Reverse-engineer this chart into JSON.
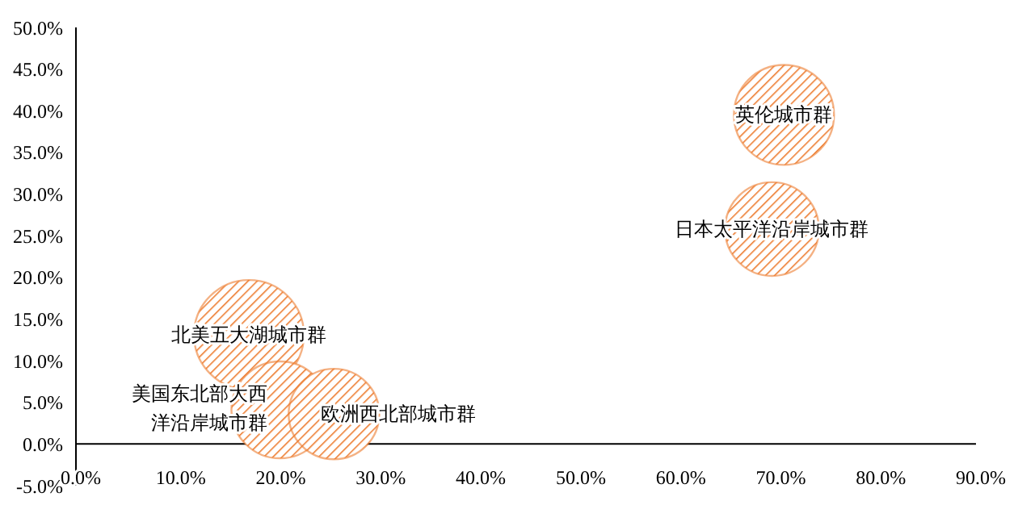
{
  "chart_data": {
    "type": "bubble",
    "xlim": [
      0,
      90
    ],
    "ylim": [
      -5,
      50
    ],
    "xticks": [
      {
        "value": 0,
        "label": "0.0%"
      },
      {
        "value": 10,
        "label": "10.0%"
      },
      {
        "value": 20,
        "label": "20.0%"
      },
      {
        "value": 30,
        "label": "30.0%"
      },
      {
        "value": 40,
        "label": "40.0%"
      },
      {
        "value": 50,
        "label": "50.0%"
      },
      {
        "value": 60,
        "label": "60.0%"
      },
      {
        "value": 70,
        "label": "70.0%"
      },
      {
        "value": 80,
        "label": "80.0%"
      },
      {
        "value": 90,
        "label": "90.0%"
      }
    ],
    "yticks": [
      {
        "value": -5,
        "label": "-5.0%"
      },
      {
        "value": 0,
        "label": "0.0%"
      },
      {
        "value": 5,
        "label": "5.0%"
      },
      {
        "value": 10,
        "label": "10.0%"
      },
      {
        "value": 15,
        "label": "15.0%"
      },
      {
        "value": 20,
        "label": "20.0%"
      },
      {
        "value": 25,
        "label": "25.0%"
      },
      {
        "value": 30,
        "label": "30.0%"
      },
      {
        "value": 35,
        "label": "35.0%"
      },
      {
        "value": 40,
        "label": "40.0%"
      },
      {
        "value": 45,
        "label": "45.0%"
      },
      {
        "value": 50,
        "label": "50.0%"
      }
    ],
    "grid": false,
    "legend": false,
    "series": [
      {
        "name": "北美五大湖城市群",
        "color": "#ed7d31",
        "x": [
          17.3
        ],
        "values": [
          13.1
        ],
        "sizes": [
          1
        ]
      },
      {
        "name": "美国东北部大西洋沿岸城市群",
        "color": "#ed7d31",
        "x": [
          20.4
        ],
        "values": [
          4.1
        ],
        "sizes": [
          0.78
        ]
      },
      {
        "name": "欧洲西北部城市群",
        "color": "#ed7d31",
        "x": [
          25.8
        ],
        "values": [
          3.6
        ],
        "sizes": [
          0.68
        ]
      },
      {
        "name": "英伦城市群",
        "color": "#ed7d31",
        "x": [
          70.8
        ],
        "values": [
          39.5
        ],
        "sizes": [
          0.83
        ]
      },
      {
        "name": "日本太平洋沿岸城市群",
        "color": "#ed7d31",
        "x": [
          69.6
        ],
        "values": [
          25.8
        ],
        "sizes": [
          0.73
        ]
      }
    ]
  }
}
